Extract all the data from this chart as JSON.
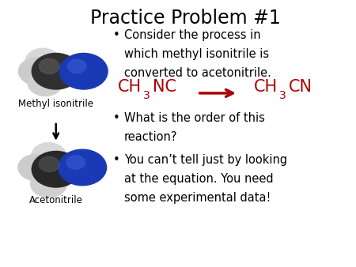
{
  "title": "Practice Problem #1",
  "title_fontsize": 17,
  "bg_color": "#ffffff",
  "bullet1_line1": "Consider the process in",
  "bullet1_line2": "which methyl isonitrile is",
  "bullet1_line3": "converted to acetonitrile.",
  "bullet2_line1": "What is the order of this",
  "bullet2_line2": "reaction?",
  "bullet3_line1": "You can’t tell just by looking",
  "bullet3_line2": "at the equation. You need",
  "bullet3_line3": "some experimental data!",
  "chem_color": "#aa0000",
  "text_color": "#000000",
  "label_methyl": "Methyl isonitrile",
  "label_acetonitrile": "Acetonitrile",
  "bullet_fontsize": 10.5,
  "label_fontsize": 8.5,
  "chem_main_fontsize": 15,
  "chem_sub_fontsize": 10,
  "fig_w": 4.5,
  "fig_h": 3.38,
  "dpi": 100
}
